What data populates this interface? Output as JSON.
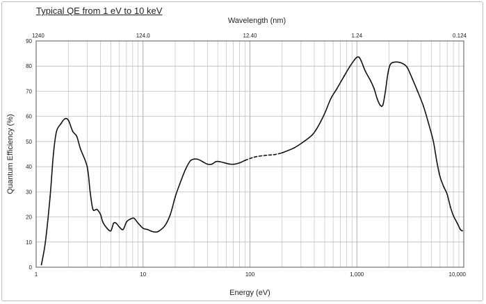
{
  "title": "Typical QE from 1 eV to 10 keV",
  "chart_data": {
    "type": "line",
    "title": "Typical QE from 1 eV to 10 keV",
    "xlabel": "Energy (eV)",
    "ylabel": "Quantum Efficiency (%)",
    "x2label": "Wavelength (nm)",
    "xscale": "log",
    "xlim": [
      1,
      10000
    ],
    "ylim": [
      0,
      90
    ],
    "grid": true,
    "x_ticks": [
      {
        "value": 1,
        "label": "1"
      },
      {
        "value": 10,
        "label": "10"
      },
      {
        "value": 100,
        "label": "100"
      },
      {
        "value": 1000,
        "label": "1,000"
      },
      {
        "value": 10000,
        "label": "10,000"
      }
    ],
    "x2_ticks": [
      {
        "value": 1,
        "label": "1240"
      },
      {
        "value": 10,
        "label": "124.0"
      },
      {
        "value": 100,
        "label": "12.40"
      },
      {
        "value": 1000,
        "label": "1.24"
      },
      {
        "value": 10000,
        "label": "0.124"
      }
    ],
    "y_ticks": [
      0,
      10,
      20,
      30,
      40,
      50,
      60,
      70,
      80,
      90
    ],
    "series": [
      {
        "segments": [
          {
            "style": "solid",
            "points": [
              [
                1.12,
                1
              ],
              [
                1.22,
                10
              ],
              [
                1.35,
                28
              ],
              [
                1.45,
                45
              ],
              [
                1.55,
                54
              ],
              [
                1.7,
                57
              ],
              [
                1.85,
                59
              ],
              [
                2.0,
                58.5
              ],
              [
                2.2,
                54
              ],
              [
                2.4,
                52
              ],
              [
                2.6,
                47
              ],
              [
                3.0,
                40
              ],
              [
                3.2,
                30
              ],
              [
                3.4,
                23
              ],
              [
                3.7,
                23
              ],
              [
                4.0,
                21
              ],
              [
                4.2,
                18
              ],
              [
                4.6,
                15.5
              ],
              [
                5.0,
                14.5
              ],
              [
                5.3,
                17.5
              ],
              [
                5.6,
                17.5
              ],
              [
                6.0,
                16
              ],
              [
                6.5,
                15
              ],
              [
                7.0,
                18
              ],
              [
                7.5,
                19
              ],
              [
                8.2,
                19.5
              ],
              [
                9.0,
                17.5
              ],
              [
                10,
                15.5
              ],
              [
                11,
                15
              ],
              [
                12,
                14.3
              ],
              [
                13,
                14
              ],
              [
                14,
                14.3
              ],
              [
                16,
                16.5
              ],
              [
                18,
                21
              ],
              [
                20,
                28
              ],
              [
                22,
                33
              ],
              [
                25,
                39
              ],
              [
                28,
                42.5
              ],
              [
                32,
                43
              ],
              [
                36,
                42
              ],
              [
                40,
                41
              ],
              [
                44,
                41
              ],
              [
                48,
                42
              ],
              [
                52,
                42
              ],
              [
                58,
                41.5
              ],
              [
                65,
                41
              ],
              [
                72,
                41
              ],
              [
                80,
                41.5
              ],
              [
                90,
                42.5
              ]
            ]
          },
          {
            "style": "dashed",
            "points": [
              [
                90,
                42.5
              ],
              [
                110,
                43.8
              ],
              [
                140,
                44.5
              ],
              [
                170,
                44.8
              ],
              [
                200,
                45.5
              ]
            ]
          },
          {
            "style": "solid",
            "points": [
              [
                200,
                45.5
              ],
              [
                260,
                47.5
              ],
              [
                320,
                50
              ],
              [
                380,
                52.5
              ],
              [
                420,
                55
              ],
              [
                460,
                58
              ],
              [
                510,
                62
              ],
              [
                570,
                67
              ],
              [
                650,
                71
              ],
              [
                760,
                76
              ],
              [
                850,
                79.5
              ],
              [
                950,
                82.5
              ],
              [
                1000,
                83.5
              ],
              [
                1050,
                83.5
              ],
              [
                1100,
                82
              ],
              [
                1200,
                78
              ],
              [
                1350,
                74
              ],
              [
                1450,
                71
              ],
              [
                1550,
                67
              ],
              [
                1650,
                64.5
              ],
              [
                1750,
                64.5
              ],
              [
                1850,
                70
              ],
              [
                1950,
                77
              ],
              [
                2050,
                80.5
              ],
              [
                2200,
                81.5
              ],
              [
                2500,
                81.5
              ],
              [
                2800,
                80.5
              ],
              [
                3000,
                79
              ],
              [
                3300,
                75
              ],
              [
                3700,
                70
              ],
              [
                4200,
                64
              ],
              [
                4700,
                57
              ],
              [
                5200,
                50
              ],
              [
                5600,
                42
              ],
              [
                6000,
                36
              ],
              [
                6500,
                32
              ],
              [
                7000,
                29
              ],
              [
                7500,
                24
              ],
              [
                8000,
                20.5
              ],
              [
                8700,
                17.5
              ],
              [
                9300,
                15
              ],
              [
                9700,
                14.5
              ]
            ]
          }
        ]
      }
    ]
  }
}
